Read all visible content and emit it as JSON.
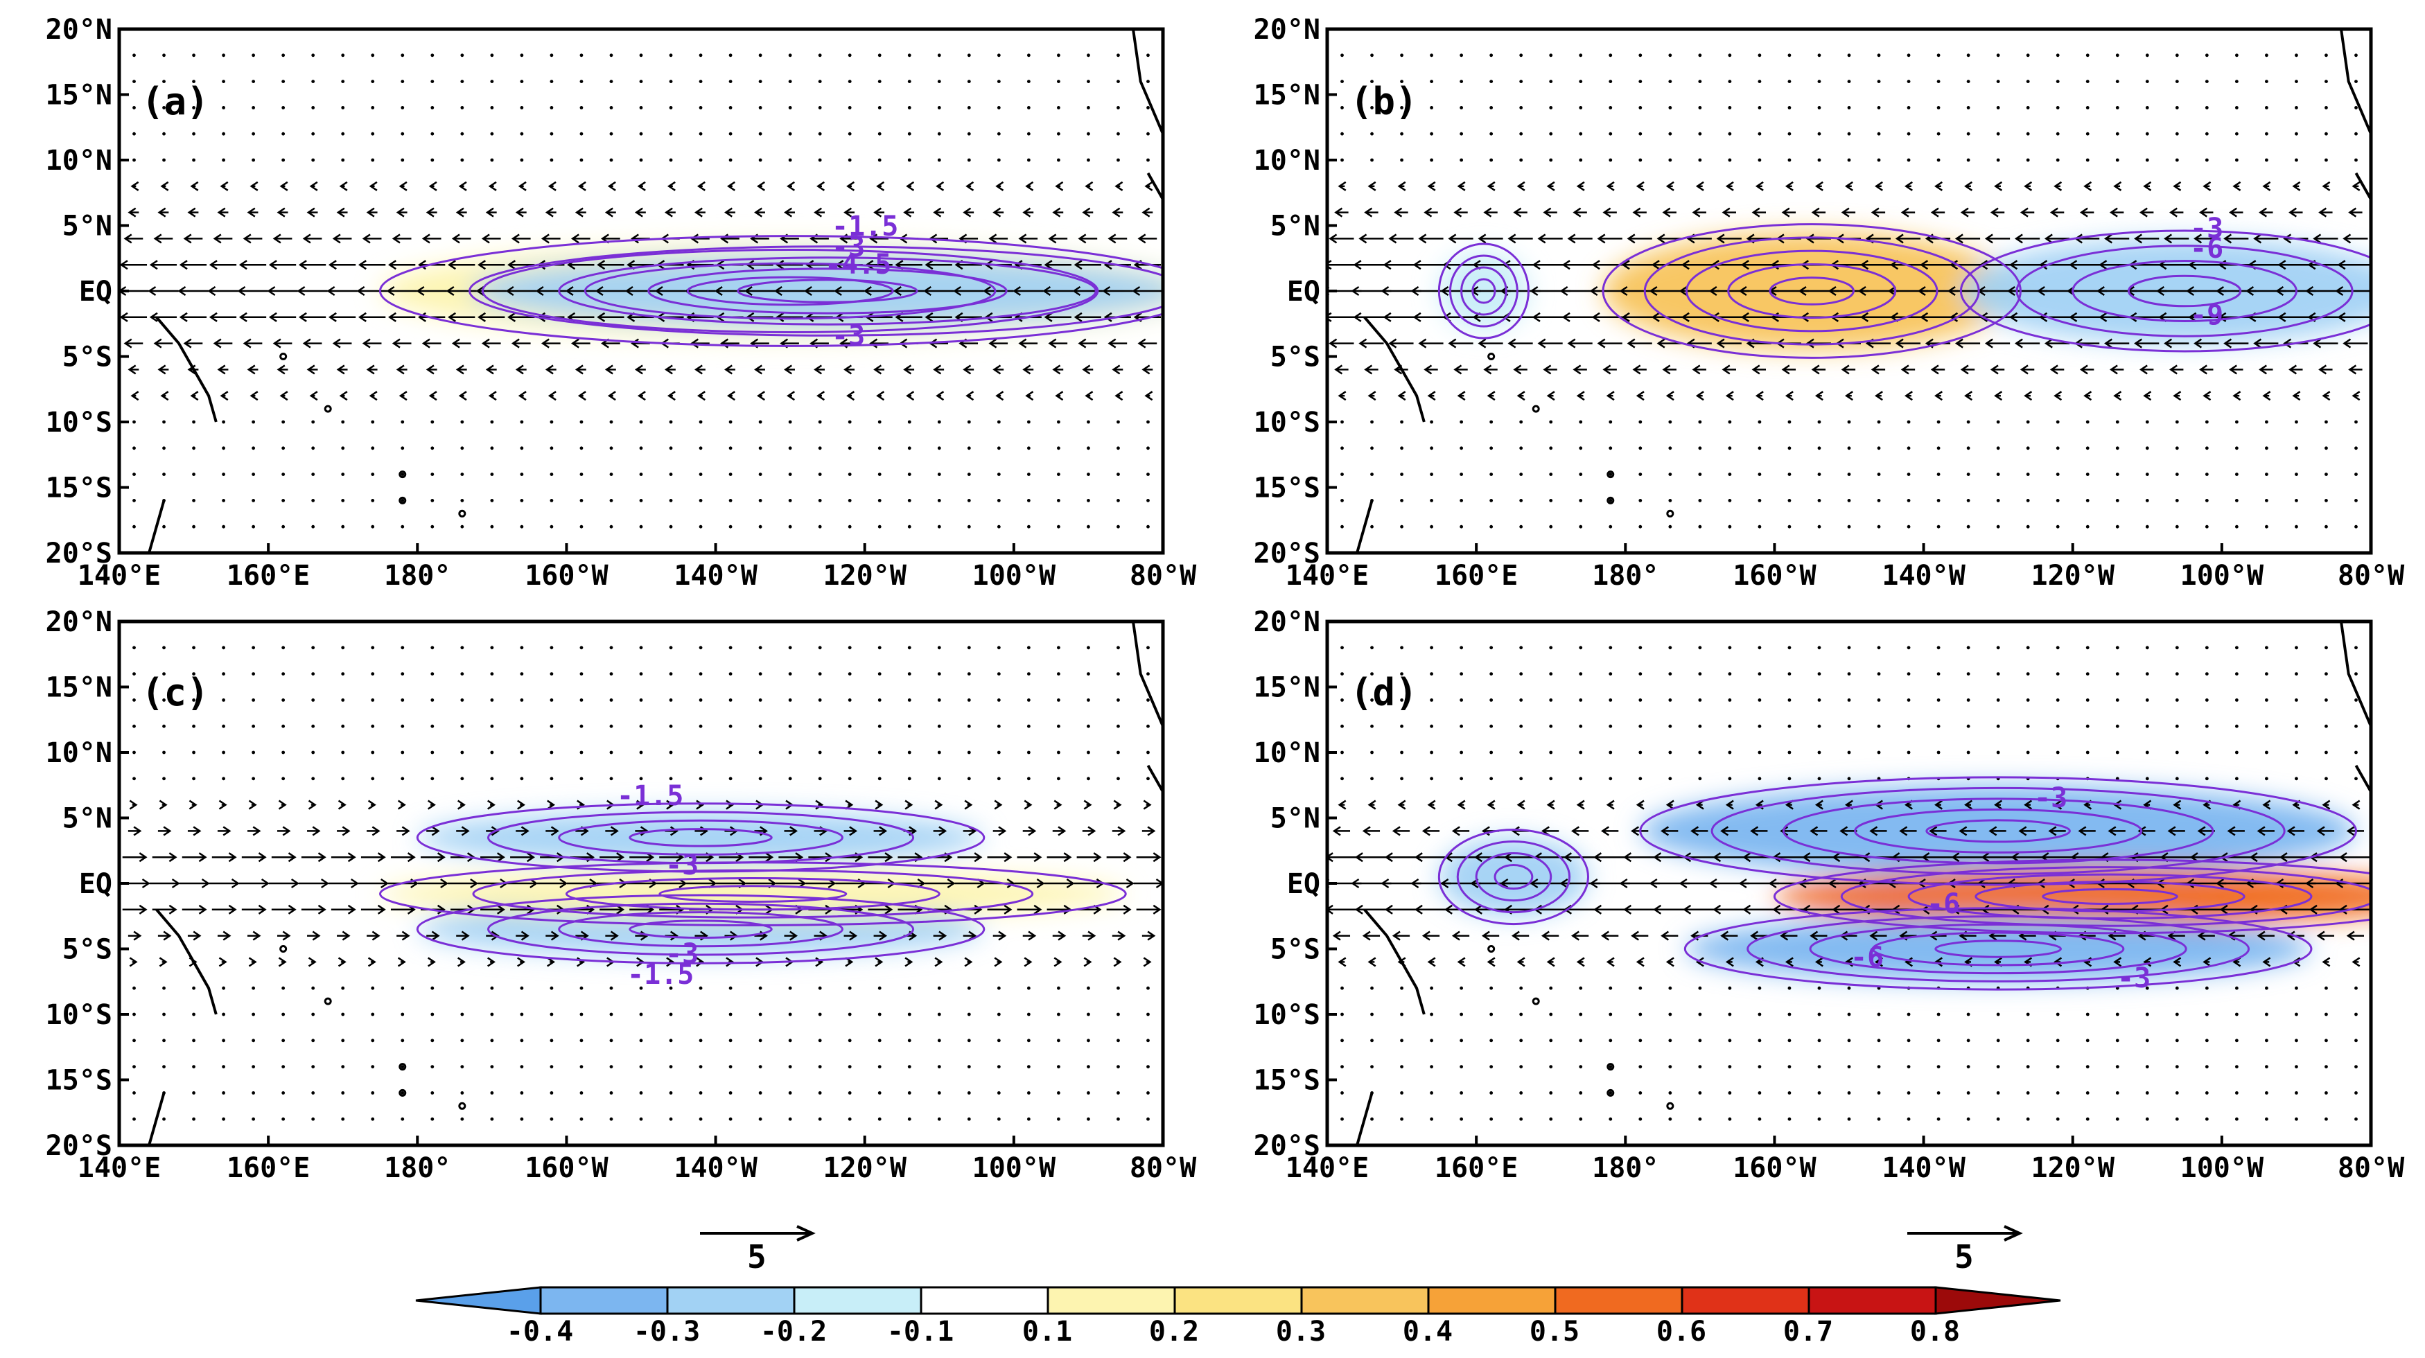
{
  "colors": {
    "contour": "#7a2fd6",
    "land": "#000000",
    "vector": "#000000"
  },
  "colorbar": {
    "tick_labels": [
      "-0.4",
      "-0.3",
      "-0.2",
      "-0.1",
      "0.1",
      "0.2",
      "0.3",
      "0.4",
      "0.5",
      "0.6",
      "0.7",
      "0.8"
    ],
    "colors": [
      "#5aa0ea",
      "#7cb6f0",
      "#a2d2f4",
      "#c8eef8",
      "#ffffff",
      "#fdf4b0",
      "#fbe382",
      "#f8c45c",
      "#f6a238",
      "#f06a20",
      "#e03218",
      "#c81414",
      "#9c0a0a"
    ]
  },
  "axes": {
    "x_ticks": [
      "140°E",
      "160°E",
      "180°",
      "160°W",
      "140°W",
      "120°W",
      "100°W",
      "80°W"
    ],
    "y_ticks": [
      "20°N",
      "15°N",
      "10°N",
      "5°N",
      "EQ",
      "5°S",
      "10°S",
      "15°S",
      "20°S"
    ]
  },
  "reference_vector": {
    "label": "5"
  },
  "panels": [
    {
      "label": "(a)",
      "contour_labels": [
        "-1.5",
        "-3",
        "-4.5",
        "-3"
      ],
      "anomalies": [
        {
          "lon": 230,
          "lat": 0,
          "rx": 55,
          "ry": 3.6,
          "value": 0.15
        },
        {
          "lon": 235,
          "lat": 0,
          "rx": 48,
          "ry": 2.8,
          "value": -0.25
        }
      ],
      "wind": {
        "u": -1.5,
        "lat_scale": 4
      }
    },
    {
      "label": "(b)",
      "contour_labels": [
        "-3",
        "-6",
        "-9"
      ],
      "anomalies": [
        {
          "lon": 161,
          "lat": 0,
          "rx": 6,
          "ry": 3.0,
          "value": -0.15
        },
        {
          "lon": 205,
          "lat": 0,
          "rx": 28,
          "ry": 4.5,
          "value": 0.35
        },
        {
          "lon": 255,
          "lat": 0,
          "rx": 30,
          "ry": 4.0,
          "value": -0.25
        }
      ],
      "wind": {
        "u": -2.0,
        "lat_scale": 4
      }
    },
    {
      "label": "(c)",
      "contour_labels": [
        "-1.5",
        "-3",
        "-3",
        "-1.5"
      ],
      "anomalies": [
        {
          "lon": 218,
          "lat": 3.5,
          "rx": 38,
          "ry": 2.0,
          "value": -0.2
        },
        {
          "lon": 218,
          "lat": -3.5,
          "rx": 38,
          "ry": 2.0,
          "value": -0.2
        },
        {
          "lon": 225,
          "lat": -0.8,
          "rx": 50,
          "ry": 1.8,
          "value": 0.15
        }
      ],
      "wind": {
        "u": 1.5,
        "lat_scale": 3
      }
    },
    {
      "label": "(d)",
      "contour_labels": [
        "-3",
        "-6",
        "-6",
        "-3"
      ],
      "anomalies": [
        {
          "lon": 230,
          "lat": 4.0,
          "rx": 48,
          "ry": 3.5,
          "value": -0.3
        },
        {
          "lon": 165,
          "lat": 0.5,
          "rx": 10,
          "ry": 3.0,
          "value": -0.2
        },
        {
          "lon": 245,
          "lat": -1.0,
          "rx": 45,
          "ry": 2.2,
          "value": 0.55
        },
        {
          "lon": 230,
          "lat": -5.0,
          "rx": 42,
          "ry": 2.5,
          "value": -0.35
        }
      ],
      "wind": {
        "u": -2.0,
        "lat_scale": 3
      }
    }
  ]
}
